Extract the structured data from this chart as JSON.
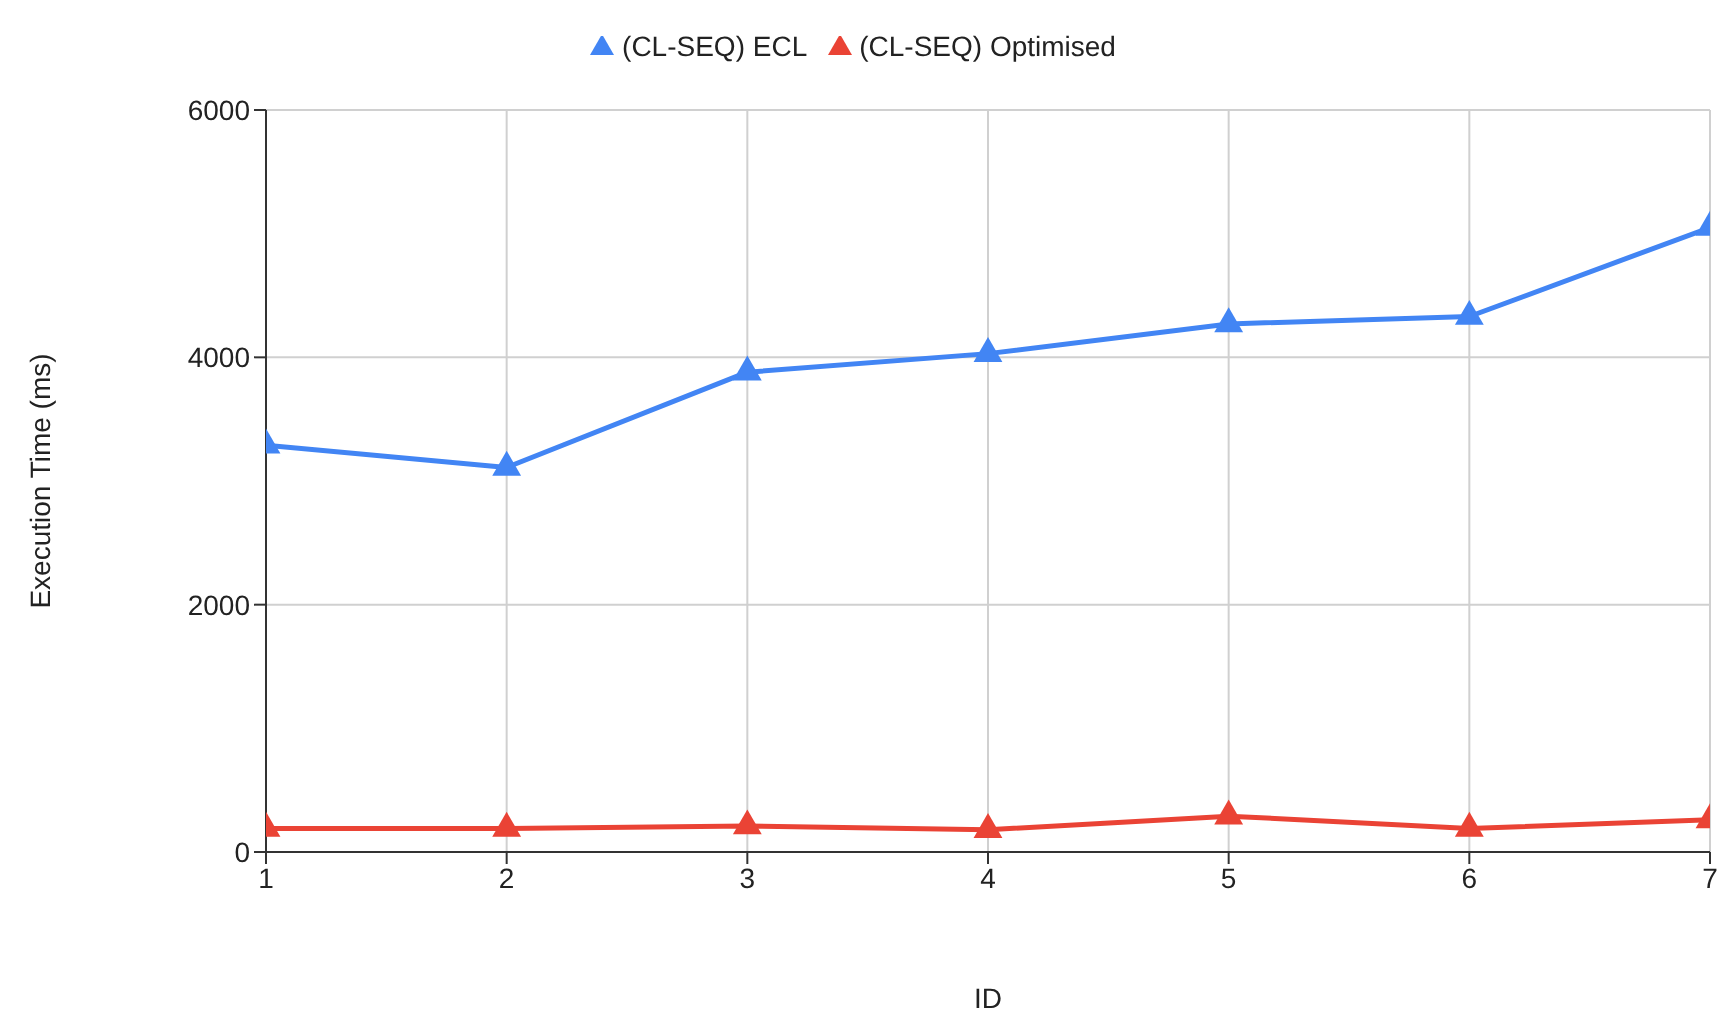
{
  "chart_data": {
    "type": "line",
    "xlabel": "ID",
    "ylabel": "Execution Time (ms)",
    "x": [
      1,
      2,
      3,
      4,
      5,
      6,
      7
    ],
    "series": [
      {
        "name": "(CL-SEQ) ECL",
        "color": "#4285f4",
        "values": [
          3290,
          3110,
          3880,
          4030,
          4270,
          4330,
          5050
        ]
      },
      {
        "name": "(CL-SEQ) Optimised",
        "color": "#ea4335",
        "values": [
          190,
          190,
          210,
          180,
          290,
          190,
          260
        ]
      }
    ],
    "xlim": [
      1,
      7
    ],
    "xticks": [
      1,
      2,
      3,
      4,
      5,
      6,
      7
    ],
    "ylim": [
      0,
      6000
    ],
    "yticks": [
      0,
      2000,
      4000,
      6000
    ],
    "grid": true,
    "legend": "top",
    "marker": "triangle",
    "line_style": "solid"
  }
}
